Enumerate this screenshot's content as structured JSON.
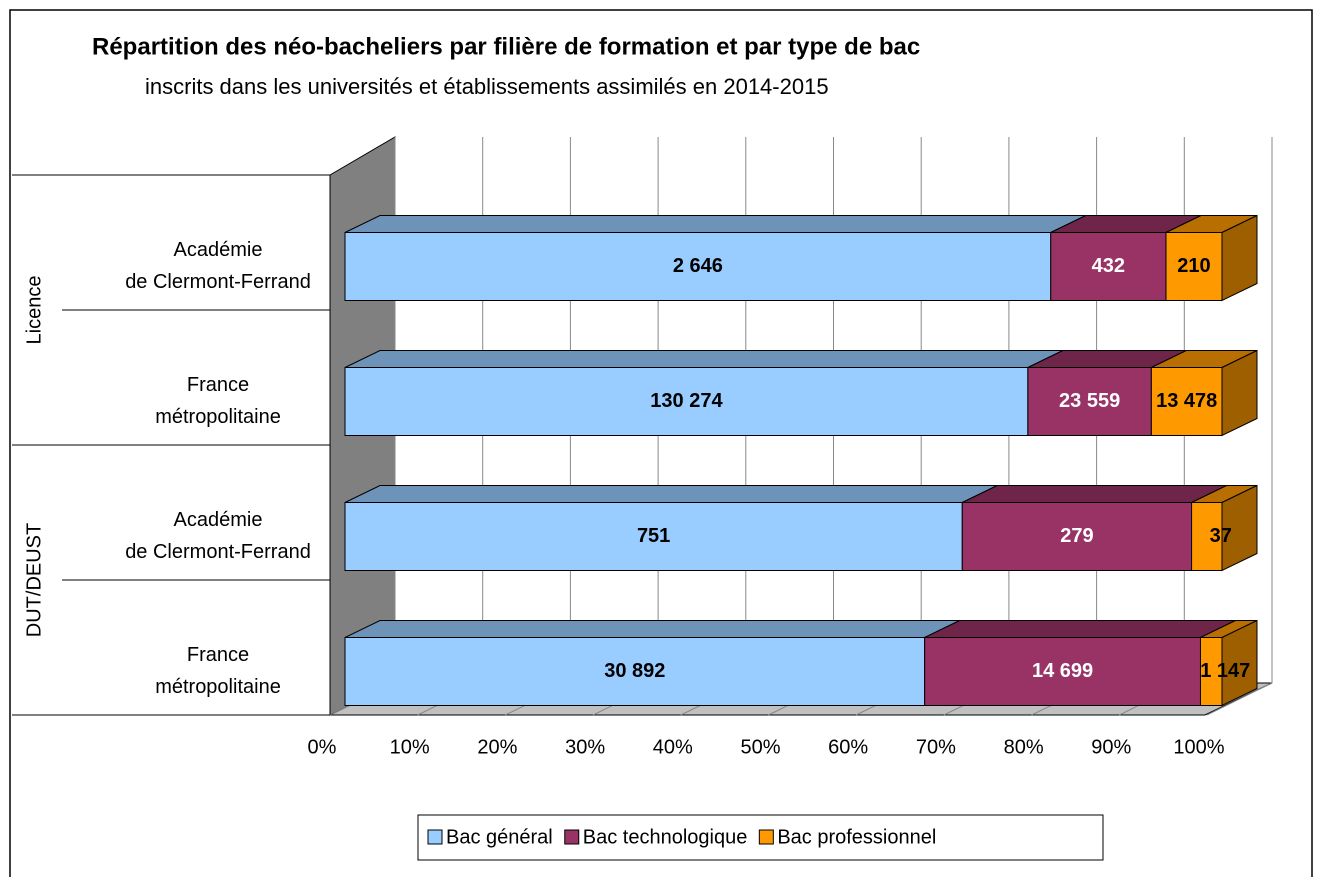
{
  "chart_data": {
    "type": "bar",
    "title": "Répartition des néo-bacheliers par filière de formation et par type de bac",
    "subtitle": "inscrits dans les universités et établissements assimilés en 2014-2015",
    "groups": [
      {
        "name": "Licence"
      },
      {
        "name": "DUT/DEUST"
      }
    ],
    "categories": [
      [
        "Académie",
        "de Clermont-Ferrand"
      ],
      [
        "France",
        "métropolitaine"
      ],
      [
        "Académie",
        "de Clermont-Ferrand"
      ],
      [
        "France",
        "métropolitaine"
      ]
    ],
    "series": [
      {
        "name": "Bac général",
        "color": "#99ccff",
        "values": [
          2646,
          130274,
          751,
          30892
        ],
        "value_labels": [
          "2 646",
          "130 274",
          "751",
          "30 892"
        ]
      },
      {
        "name": "Bac technologique",
        "color": "#993366",
        "values": [
          432,
          23559,
          279,
          14699
        ],
        "value_labels": [
          "432",
          "23 559",
          "279",
          "14 699"
        ]
      },
      {
        "name": "Bac professionnel",
        "color": "#ff9900",
        "values": [
          210,
          13478,
          37,
          1147
        ],
        "value_labels": [
          "210",
          "13 478",
          "37",
          "1 147"
        ]
      }
    ],
    "stacked": "percent",
    "xlim": [
      0,
      100
    ],
    "xticks": [
      {
        "value": 0,
        "label": "0%"
      },
      {
        "value": 10,
        "label": "10%"
      },
      {
        "value": 20,
        "label": "20%"
      },
      {
        "value": 30,
        "label": "30%"
      },
      {
        "value": 40,
        "label": "40%"
      },
      {
        "value": 50,
        "label": "50%"
      },
      {
        "value": 60,
        "label": "60%"
      },
      {
        "value": 70,
        "label": "70%"
      },
      {
        "value": 80,
        "label": "80%"
      },
      {
        "value": 90,
        "label": "90%"
      },
      {
        "value": 100,
        "label": "100%"
      }
    ],
    "grid": true,
    "legend": "bottom"
  }
}
